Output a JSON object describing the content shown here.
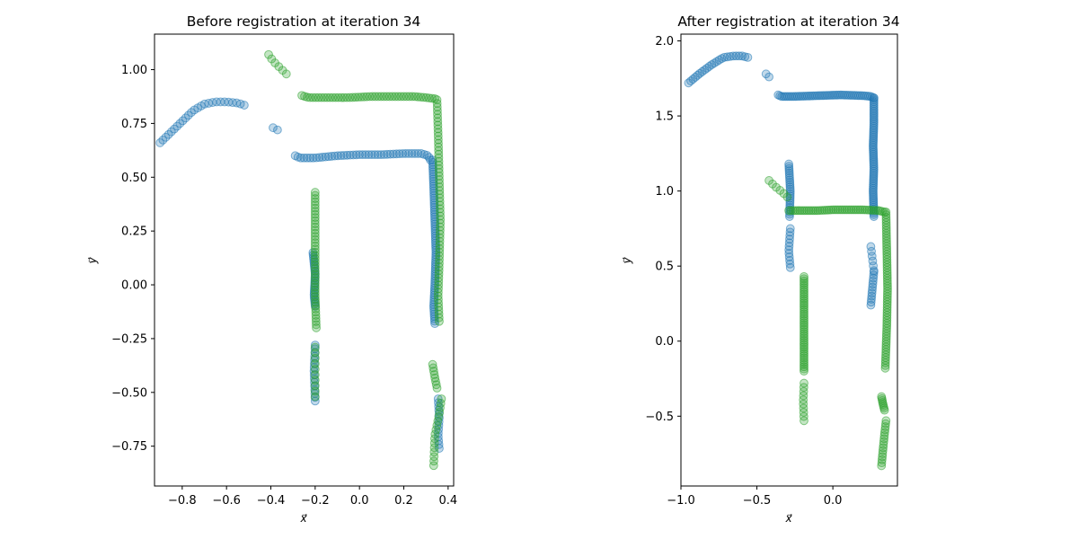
{
  "chart_data": [
    {
      "type": "scatter",
      "title": "Before registration at iteration 34",
      "xlabel": "x⃗",
      "ylabel": "y⃗",
      "xlim": [
        -0.925,
        0.425
      ],
      "ylim": [
        -0.935,
        1.165
      ],
      "xticks": [
        -0.8,
        -0.6,
        -0.4,
        -0.2,
        0.0,
        0.2,
        0.4
      ],
      "xtick_labels": [
        "−0.8",
        "−0.6",
        "−0.4",
        "−0.2",
        "0.0",
        "0.2",
        "0.4"
      ],
      "yticks": [
        -0.75,
        -0.5,
        -0.25,
        0.0,
        0.25,
        0.5,
        0.75,
        1.0
      ],
      "ytick_labels": [
        "−0.75",
        "−0.50",
        "−0.25",
        "0.00",
        "0.25",
        "0.50",
        "0.75",
        "1.00"
      ],
      "grid": false,
      "series": [
        {
          "color": "#1f77b4",
          "paths": [
            {
              "pts": [
                [
                  -0.9,
                  0.66
                ],
                [
                  -0.85,
                  0.71
                ],
                [
                  -0.8,
                  0.76
                ],
                [
                  -0.75,
                  0.81
                ],
                [
                  -0.7,
                  0.84
                ],
                [
                  -0.65,
                  0.85
                ],
                [
                  -0.6,
                  0.85
                ],
                [
                  -0.55,
                  0.845
                ],
                [
                  -0.52,
                  0.835
                ]
              ],
              "n": 26
            },
            {
              "pts": [
                [
                  -0.39,
                  0.73
                ],
                [
                  -0.37,
                  0.72
                ]
              ],
              "n": 2
            },
            {
              "pts": [
                [
                  -0.29,
                  0.6
                ],
                [
                  -0.27,
                  0.59
                ],
                [
                  -0.2,
                  0.59
                ],
                [
                  -0.1,
                  0.6
                ],
                [
                  0.0,
                  0.605
                ],
                [
                  0.1,
                  0.605
                ],
                [
                  0.2,
                  0.61
                ],
                [
                  0.28,
                  0.61
                ],
                [
                  0.31,
                  0.6
                ],
                [
                  0.32,
                  0.58
                ]
              ],
              "n": 46
            },
            {
              "pts": [
                [
                  0.33,
                  0.58
                ],
                [
                  0.335,
                  0.45
                ],
                [
                  0.34,
                  0.3
                ],
                [
                  0.345,
                  0.15
                ],
                [
                  0.34,
                  0.0
                ],
                [
                  0.335,
                  -0.1
                ],
                [
                  0.34,
                  -0.18
                ]
              ],
              "n": 70
            },
            {
              "pts": [
                [
                  -0.21,
                  0.15
                ],
                [
                  -0.2,
                  0.05
                ],
                [
                  -0.205,
                  -0.05
                ],
                [
                  -0.2,
                  -0.1
                ]
              ],
              "n": 24
            },
            {
              "pts": [
                [
                  -0.2,
                  -0.28
                ],
                [
                  -0.205,
                  -0.4
                ],
                [
                  -0.2,
                  -0.54
                ]
              ],
              "n": 16
            },
            {
              "pts": [
                [
                  0.355,
                  -0.53
                ],
                [
                  0.36,
                  -0.62
                ],
                [
                  0.355,
                  -0.7
                ],
                [
                  0.36,
                  -0.76
                ]
              ],
              "n": 14
            }
          ]
        },
        {
          "color": "#2ca02c",
          "paths": [
            {
              "pts": [
                [
                  -0.41,
                  1.07
                ],
                [
                  -0.39,
                  1.04
                ],
                [
                  -0.36,
                  1.01
                ],
                [
                  -0.33,
                  0.98
                ]
              ],
              "n": 6
            },
            {
              "pts": [
                [
                  -0.26,
                  0.88
                ],
                [
                  -0.23,
                  0.87
                ],
                [
                  -0.15,
                  0.87
                ],
                [
                  -0.05,
                  0.87
                ],
                [
                  0.05,
                  0.875
                ],
                [
                  0.15,
                  0.875
                ],
                [
                  0.25,
                  0.875
                ],
                [
                  0.3,
                  0.87
                ],
                [
                  0.34,
                  0.865
                ]
              ],
              "n": 48
            },
            {
              "pts": [
                [
                  0.35,
                  0.86
                ],
                [
                  0.355,
                  0.7
                ],
                [
                  0.36,
                  0.5
                ],
                [
                  0.365,
                  0.3
                ],
                [
                  0.36,
                  0.1
                ],
                [
                  0.355,
                  -0.05
                ],
                [
                  0.36,
                  -0.17
                ]
              ],
              "n": 62
            },
            {
              "pts": [
                [
                  -0.2,
                  0.43
                ],
                [
                  -0.2,
                  0.25
                ],
                [
                  -0.2,
                  0.1
                ],
                [
                  -0.2,
                  -0.05
                ],
                [
                  -0.195,
                  -0.2
                ]
              ],
              "n": 44
            },
            {
              "pts": [
                [
                  -0.2,
                  -0.29
                ],
                [
                  -0.2,
                  -0.4
                ],
                [
                  -0.2,
                  -0.52
                ]
              ],
              "n": 10
            },
            {
              "pts": [
                [
                  0.33,
                  -0.37
                ],
                [
                  0.34,
                  -0.43
                ],
                [
                  0.35,
                  -0.48
                ]
              ],
              "n": 8
            },
            {
              "pts": [
                [
                  0.37,
                  -0.53
                ],
                [
                  0.36,
                  -0.6
                ],
                [
                  0.34,
                  -0.7
                ],
                [
                  0.335,
                  -0.84
                ]
              ],
              "n": 16
            }
          ]
        }
      ]
    },
    {
      "type": "scatter",
      "title": "After registration at iteration 34",
      "xlabel": "x⃗",
      "ylabel": "y⃗",
      "xlim": [
        -1.0,
        0.425
      ],
      "ylim": [
        -0.965,
        2.045
      ],
      "xticks": [
        -1.0,
        -0.5,
        0.0
      ],
      "xtick_labels": [
        "−1.0",
        "−0.5",
        "0.0"
      ],
      "yticks": [
        -0.5,
        0.0,
        0.5,
        1.0,
        1.5,
        2.0
      ],
      "ytick_labels": [
        "−0.5",
        "0.0",
        "0.5",
        "1.0",
        "1.5",
        "2.0"
      ],
      "grid": false,
      "series": [
        {
          "color": "#1f77b4",
          "paths": [
            {
              "pts": [
                [
                  -0.95,
                  1.72
                ],
                [
                  -0.88,
                  1.78
                ],
                [
                  -0.8,
                  1.84
                ],
                [
                  -0.72,
                  1.89
                ],
                [
                  -0.65,
                  1.9
                ],
                [
                  -0.6,
                  1.9
                ],
                [
                  -0.56,
                  1.89
                ]
              ],
              "n": 24
            },
            {
              "pts": [
                [
                  -0.44,
                  1.78
                ],
                [
                  -0.42,
                  1.76
                ]
              ],
              "n": 2
            },
            {
              "pts": [
                [
                  -0.36,
                  1.64
                ],
                [
                  -0.34,
                  1.63
                ],
                [
                  -0.25,
                  1.63
                ],
                [
                  -0.1,
                  1.635
                ],
                [
                  0.05,
                  1.64
                ],
                [
                  0.2,
                  1.635
                ],
                [
                  0.25,
                  1.63
                ],
                [
                  0.27,
                  1.62
                ]
              ],
              "n": 50
            },
            {
              "pts": [
                [
                  0.27,
                  1.62
                ],
                [
                  0.27,
                  1.45
                ],
                [
                  0.265,
                  1.3
                ],
                [
                  0.27,
                  1.15
                ],
                [
                  0.265,
                  1.0
                ],
                [
                  0.27,
                  0.83
                ]
              ],
              "n": 64
            },
            {
              "pts": [
                [
                  -0.29,
                  1.18
                ],
                [
                  -0.28,
                  1.0
                ],
                [
                  -0.285,
                  0.83
                ]
              ],
              "n": 24
            },
            {
              "pts": [
                [
                  -0.28,
                  0.75
                ],
                [
                  -0.29,
                  0.6
                ],
                [
                  -0.28,
                  0.49
                ]
              ],
              "n": 12
            },
            {
              "pts": [
                [
                  0.25,
                  0.63
                ],
                [
                  0.26,
                  0.55
                ],
                [
                  0.27,
                  0.47
                ]
              ],
              "n": 6
            },
            {
              "pts": [
                [
                  0.27,
                  0.46
                ],
                [
                  0.26,
                  0.35
                ],
                [
                  0.25,
                  0.24
                ]
              ],
              "n": 12
            }
          ]
        },
        {
          "color": "#2ca02c",
          "paths": [
            {
              "pts": [
                [
                  -0.42,
                  1.07
                ],
                [
                  -0.38,
                  1.03
                ],
                [
                  -0.33,
                  0.99
                ],
                [
                  -0.3,
                  0.96
                ]
              ],
              "n": 6
            },
            {
              "pts": [
                [
                  -0.29,
                  0.87
                ],
                [
                  -0.2,
                  0.87
                ],
                [
                  -0.1,
                  0.87
                ],
                [
                  0.0,
                  0.875
                ],
                [
                  0.1,
                  0.875
                ],
                [
                  0.2,
                  0.875
                ],
                [
                  0.3,
                  0.87
                ],
                [
                  0.34,
                  0.86
                ]
              ],
              "n": 44
            },
            {
              "pts": [
                [
                  0.35,
                  0.86
                ],
                [
                  0.355,
                  0.6
                ],
                [
                  0.36,
                  0.35
                ],
                [
                  0.355,
                  0.1
                ],
                [
                  0.345,
                  -0.18
                ]
              ],
              "n": 60
            },
            {
              "pts": [
                [
                  -0.19,
                  0.43
                ],
                [
                  -0.19,
                  0.2
                ],
                [
                  -0.19,
                  0.0
                ],
                [
                  -0.19,
                  -0.2
                ]
              ],
              "n": 44
            },
            {
              "pts": [
                [
                  -0.19,
                  -0.28
                ],
                [
                  -0.195,
                  -0.4
                ],
                [
                  -0.19,
                  -0.53
                ]
              ],
              "n": 10
            },
            {
              "pts": [
                [
                  0.32,
                  -0.37
                ],
                [
                  0.33,
                  -0.42
                ],
                [
                  0.34,
                  -0.46
                ]
              ],
              "n": 8
            },
            {
              "pts": [
                [
                  0.35,
                  -0.53
                ],
                [
                  0.34,
                  -0.62
                ],
                [
                  0.33,
                  -0.72
                ],
                [
                  0.32,
                  -0.83
                ]
              ],
              "n": 16
            }
          ]
        }
      ]
    }
  ]
}
